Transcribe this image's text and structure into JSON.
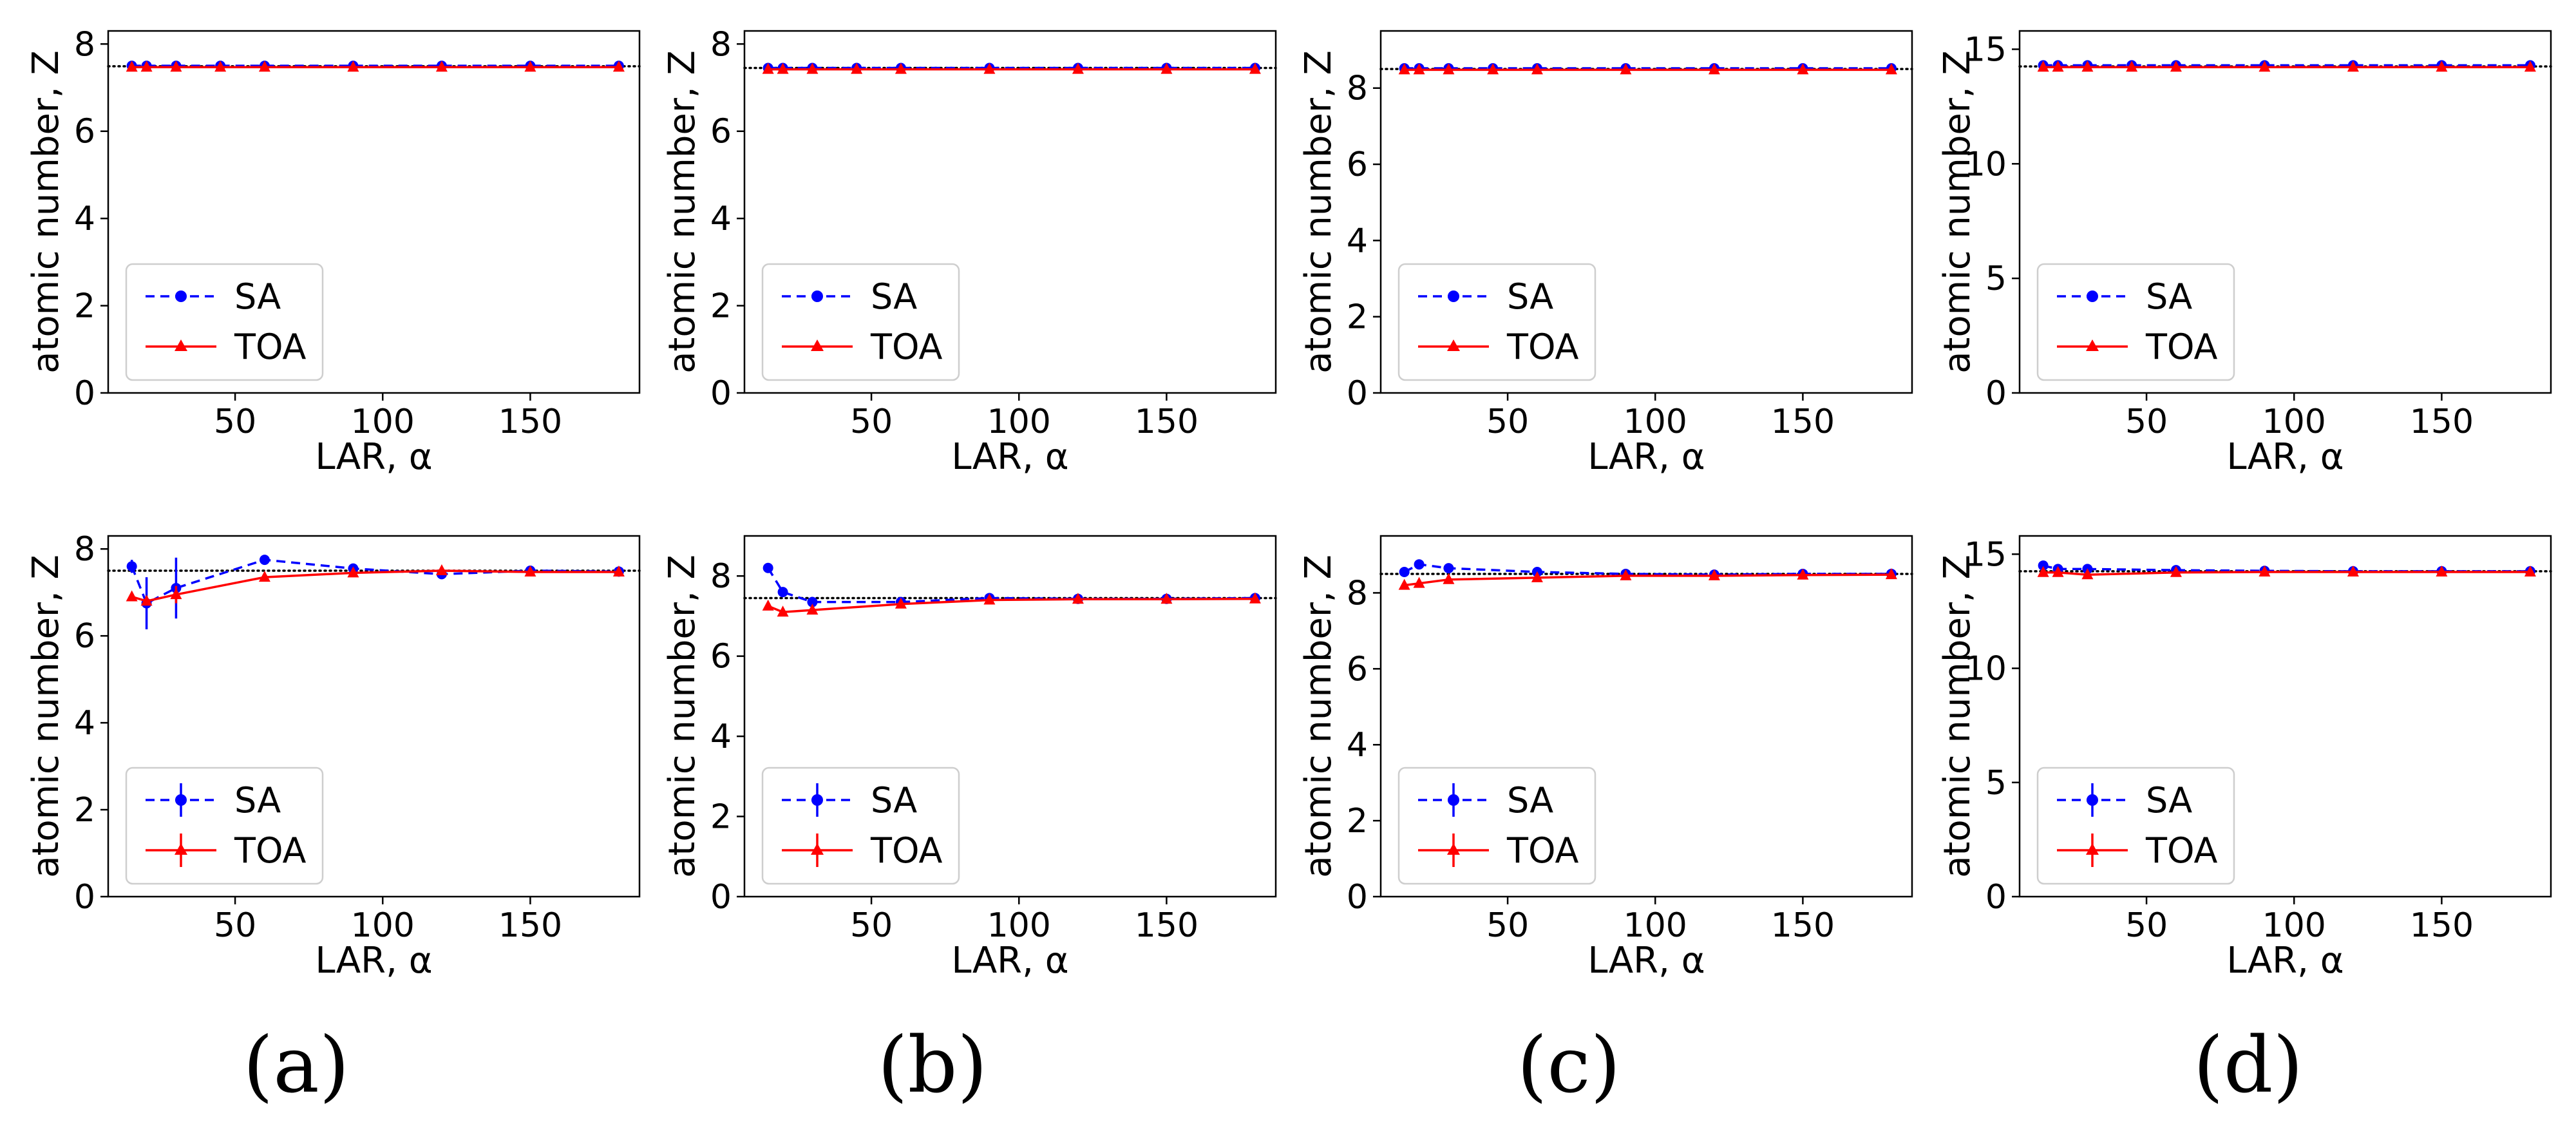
{
  "figure": {
    "panel_labels": [
      "(a)",
      "(b)",
      "(c)",
      "(d)"
    ]
  },
  "colors": {
    "sa": "#0000ff",
    "toa": "#ff0000",
    "reference": "#000000"
  },
  "chart_data": [
    {
      "type": "line",
      "xlabel": "LAR, α",
      "ylabel": "atomic number, Z",
      "xlim": [
        7,
        187
      ],
      "ylim": [
        0,
        8.3
      ],
      "xticks": [
        50,
        100,
        150
      ],
      "yticks": [
        0,
        2,
        4,
        6,
        8
      ],
      "reference": 7.49,
      "legend": "lower-left",
      "errorbar_legend": false,
      "x": [
        15,
        20,
        30,
        45,
        60,
        90,
        120,
        150,
        180
      ],
      "series": [
        {
          "name": "SA",
          "values": [
            7.5,
            7.5,
            7.5,
            7.5,
            7.5,
            7.5,
            7.5,
            7.5,
            7.5
          ]
        },
        {
          "name": "TOA",
          "values": [
            7.47,
            7.47,
            7.47,
            7.47,
            7.47,
            7.47,
            7.47,
            7.47,
            7.47
          ]
        }
      ]
    },
    {
      "type": "line",
      "xlabel": "LAR, α",
      "ylabel": "atomic number, Z",
      "xlim": [
        7,
        187
      ],
      "ylim": [
        0,
        8.3
      ],
      "xticks": [
        50,
        100,
        150
      ],
      "yticks": [
        0,
        2,
        4,
        6,
        8
      ],
      "reference": 7.45,
      "legend": "lower-left",
      "errorbar_legend": false,
      "x": [
        15,
        20,
        30,
        45,
        60,
        90,
        120,
        150,
        180
      ],
      "series": [
        {
          "name": "SA",
          "values": [
            7.45,
            7.45,
            7.45,
            7.45,
            7.45,
            7.45,
            7.45,
            7.45,
            7.45
          ]
        },
        {
          "name": "TOA",
          "values": [
            7.42,
            7.42,
            7.42,
            7.42,
            7.42,
            7.42,
            7.42,
            7.42,
            7.42
          ]
        }
      ]
    },
    {
      "type": "line",
      "xlabel": "LAR, α",
      "ylabel": "atomic number, Z",
      "xlim": [
        7,
        187
      ],
      "ylim": [
        0,
        9.5
      ],
      "xticks": [
        50,
        100,
        150
      ],
      "yticks": [
        0,
        2,
        4,
        6,
        8
      ],
      "reference": 8.5,
      "legend": "lower-left",
      "errorbar_legend": false,
      "x": [
        15,
        20,
        30,
        45,
        60,
        90,
        120,
        150,
        180
      ],
      "series": [
        {
          "name": "SA",
          "values": [
            8.52,
            8.52,
            8.52,
            8.52,
            8.52,
            8.52,
            8.52,
            8.52,
            8.52
          ]
        },
        {
          "name": "TOA",
          "values": [
            8.48,
            8.48,
            8.48,
            8.48,
            8.48,
            8.48,
            8.48,
            8.48,
            8.48
          ]
        }
      ]
    },
    {
      "type": "line",
      "xlabel": "LAR, α",
      "ylabel": "atomic number, Z",
      "xlim": [
        7,
        187
      ],
      "ylim": [
        0,
        15.8
      ],
      "xticks": [
        50,
        100,
        150
      ],
      "yticks": [
        0,
        5,
        10,
        15
      ],
      "reference": 14.25,
      "legend": "lower-left",
      "errorbar_legend": false,
      "x": [
        15,
        20,
        30,
        45,
        60,
        90,
        120,
        150,
        180
      ],
      "series": [
        {
          "name": "SA",
          "values": [
            14.3,
            14.3,
            14.3,
            14.3,
            14.3,
            14.3,
            14.3,
            14.3,
            14.3
          ]
        },
        {
          "name": "TOA",
          "values": [
            14.22,
            14.22,
            14.22,
            14.22,
            14.22,
            14.22,
            14.22,
            14.22,
            14.22
          ]
        }
      ]
    },
    {
      "type": "line",
      "xlabel": "LAR, α",
      "ylabel": "atomic number, Z",
      "xlim": [
        7,
        187
      ],
      "ylim": [
        0,
        8.3
      ],
      "xticks": [
        50,
        100,
        150
      ],
      "yticks": [
        0,
        2,
        4,
        6,
        8
      ],
      "reference": 7.5,
      "legend": "lower-left",
      "errorbar_legend": true,
      "x": [
        15,
        20,
        30,
        60,
        90,
        120,
        150,
        180
      ],
      "series": [
        {
          "name": "SA",
          "values": [
            7.6,
            6.75,
            7.1,
            7.75,
            7.55,
            7.42,
            7.5,
            7.48
          ],
          "errors": [
            0.15,
            0.6,
            0.7,
            0.05,
            0.05,
            0.05,
            0.05,
            0.05
          ]
        },
        {
          "name": "TOA",
          "values": [
            6.9,
            6.8,
            6.95,
            7.35,
            7.45,
            7.5,
            7.47,
            7.47
          ],
          "errors": [
            0.05,
            0.1,
            0.2,
            0.05,
            0.05,
            0.05,
            0.05,
            0.05
          ]
        }
      ]
    },
    {
      "type": "line",
      "xlabel": "LAR, α",
      "ylabel": "atomic number, Z",
      "xlim": [
        7,
        187
      ],
      "ylim": [
        0,
        9.0
      ],
      "xticks": [
        50,
        100,
        150
      ],
      "yticks": [
        0,
        2,
        4,
        6,
        8
      ],
      "reference": 7.45,
      "legend": "lower-left",
      "errorbar_legend": true,
      "x": [
        15,
        20,
        30,
        60,
        90,
        120,
        150,
        180
      ],
      "series": [
        {
          "name": "SA",
          "values": [
            8.2,
            7.6,
            7.35,
            7.35,
            7.45,
            7.43,
            7.43,
            7.45
          ],
          "errors": [
            0.05,
            0.05,
            0.05,
            0.05,
            0.05,
            0.05,
            0.05,
            0.05
          ]
        },
        {
          "name": "TOA",
          "values": [
            7.25,
            7.1,
            7.15,
            7.3,
            7.4,
            7.42,
            7.42,
            7.43
          ],
          "errors": [
            0.05,
            0.05,
            0.05,
            0.05,
            0.05,
            0.05,
            0.05,
            0.05
          ]
        }
      ]
    },
    {
      "type": "line",
      "xlabel": "LAR, α",
      "ylabel": "atomic number, Z",
      "xlim": [
        7,
        187
      ],
      "ylim": [
        0,
        9.5
      ],
      "xticks": [
        50,
        100,
        150
      ],
      "yticks": [
        0,
        2,
        4,
        6,
        8
      ],
      "reference": 8.5,
      "legend": "lower-left",
      "errorbar_legend": true,
      "x": [
        15,
        20,
        30,
        60,
        90,
        120,
        150,
        180
      ],
      "series": [
        {
          "name": "SA",
          "values": [
            8.55,
            8.75,
            8.65,
            8.55,
            8.5,
            8.48,
            8.5,
            8.5
          ],
          "errors": [
            0.05,
            0.05,
            0.05,
            0.05,
            0.05,
            0.05,
            0.05,
            0.05
          ]
        },
        {
          "name": "TOA",
          "values": [
            8.2,
            8.25,
            8.35,
            8.4,
            8.45,
            8.45,
            8.47,
            8.48
          ],
          "errors": [
            0.05,
            0.05,
            0.05,
            0.05,
            0.05,
            0.05,
            0.05,
            0.05
          ]
        }
      ]
    },
    {
      "type": "line",
      "xlabel": "LAR, α",
      "ylabel": "atomic number, Z",
      "xlim": [
        7,
        187
      ],
      "ylim": [
        0,
        15.8
      ],
      "xticks": [
        50,
        100,
        150
      ],
      "yticks": [
        0,
        5,
        10,
        15
      ],
      "reference": 14.25,
      "legend": "lower-left",
      "errorbar_legend": true,
      "x": [
        15,
        20,
        30,
        60,
        90,
        120,
        150,
        180
      ],
      "series": [
        {
          "name": "SA",
          "values": [
            14.5,
            14.35,
            14.35,
            14.3,
            14.27,
            14.25,
            14.25,
            14.25
          ],
          "errors": [
            0.05,
            0.05,
            0.05,
            0.05,
            0.05,
            0.05,
            0.05,
            0.05
          ]
        },
        {
          "name": "TOA",
          "values": [
            14.2,
            14.2,
            14.1,
            14.2,
            14.22,
            14.22,
            14.22,
            14.22
          ],
          "errors": [
            0.05,
            0.05,
            0.05,
            0.05,
            0.05,
            0.05,
            0.05,
            0.05
          ]
        }
      ]
    }
  ]
}
